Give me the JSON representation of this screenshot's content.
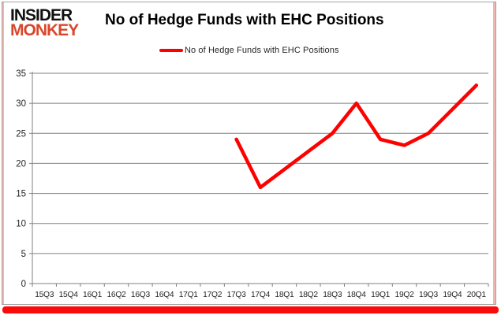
{
  "logo": {
    "line1": "INSIDER",
    "line2": "MONKEY"
  },
  "header": {
    "title": "No of Hedge Funds with EHC Positions"
  },
  "legend": {
    "label": "No of Hedge Funds with EHC Positions"
  },
  "colors": {
    "series": "#ff0000",
    "logo_accent": "#d9472b",
    "gridline": "#808080",
    "axis_line": "#808080",
    "axis_text": "#262626",
    "frame_red": "#fb0a0a",
    "border_gray": "#a3a3a3"
  },
  "chart_data": {
    "type": "line",
    "title": "No of Hedge Funds with EHC Positions",
    "categories": [
      "15Q3",
      "15Q4",
      "16Q1",
      "16Q2",
      "16Q3",
      "16Q4",
      "17Q1",
      "17Q2",
      "17Q3",
      "17Q4",
      "18Q1",
      "18Q2",
      "18Q3",
      "18Q4",
      "19Q1",
      "19Q2",
      "19Q3",
      "19Q4",
      "20Q1"
    ],
    "series": [
      {
        "name": "No of Hedge Funds with EHC Positions",
        "values": [
          null,
          null,
          null,
          null,
          null,
          null,
          null,
          null,
          24,
          16,
          19,
          22,
          25,
          30,
          24,
          23,
          25,
          29,
          33
        ]
      }
    ],
    "xlabel": "",
    "ylabel": "",
    "ylim": [
      0,
      35
    ],
    "yticks": [
      0,
      5,
      10,
      15,
      20,
      25,
      30,
      35
    ],
    "grid": true,
    "legend_position": "top-center"
  }
}
